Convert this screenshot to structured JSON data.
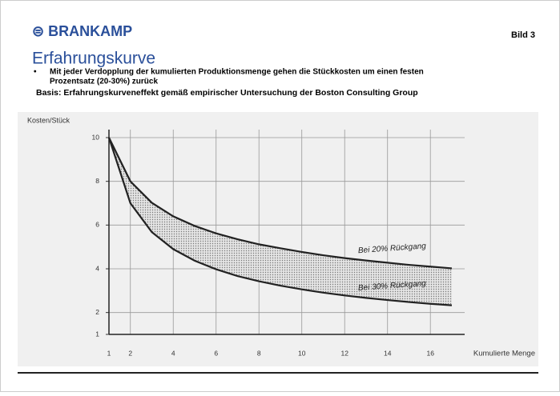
{
  "header": {
    "logo": "⊜ BRANKAMP",
    "page": "Bild 3",
    "title": "Erfahrungskurve",
    "bullet": [
      "Mit jeder Verdopplung der kumulierten Produktionsmenge gehen die Stückkosten um einen festen",
      "Prozentsatz (20-30%) zurück"
    ],
    "basis": "Basis: Erfahrungskurveneffekt gemäß empirischer Untersuchung der Boston Consulting Group"
  },
  "chart_data": {
    "type": "line",
    "y_label": "Kosten/Stück",
    "x_label": "Kumulierte Menge",
    "x": [
      1,
      2,
      3,
      4,
      5,
      6,
      7,
      8,
      9,
      10,
      11,
      12,
      13,
      14,
      15,
      16,
      17
    ],
    "series": [
      {
        "name": "Bei 20% Rückgang",
        "color": "#222222",
        "values": [
          10,
          8,
          7.02,
          6.4,
          5.96,
          5.62,
          5.35,
          5.12,
          4.94,
          4.77,
          4.62,
          4.49,
          4.38,
          4.28,
          4.18,
          4.1,
          4.02
        ]
      },
      {
        "name": "Bei 30% Rückgang",
        "color": "#222222",
        "values": [
          10,
          7,
          5.68,
          4.9,
          4.37,
          3.98,
          3.67,
          3.43,
          3.23,
          3.06,
          2.91,
          2.78,
          2.67,
          2.57,
          2.48,
          2.4,
          2.33
        ]
      }
    ],
    "xlim": [
      1,
      17.6
    ],
    "xticks": [
      1,
      2,
      4,
      6,
      8,
      10,
      12,
      14,
      16
    ],
    "ylim": [
      1,
      10
    ],
    "yticks": [
      1,
      2,
      4,
      6,
      8,
      10
    ],
    "grid": true
  }
}
